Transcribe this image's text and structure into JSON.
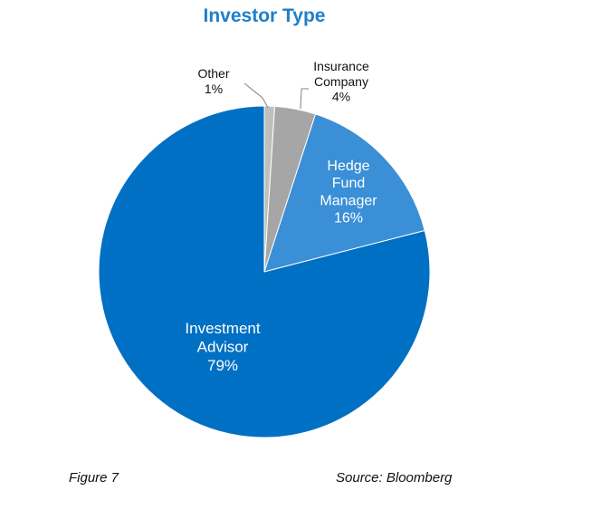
{
  "chart_data": {
    "type": "pie",
    "title": "Investor Type",
    "slices": [
      {
        "label": [
          "Other",
          "1%"
        ],
        "value": 1,
        "color": "#bfbfbf"
      },
      {
        "label": [
          "Insurance",
          "Company",
          "4%"
        ],
        "value": 4,
        "color": "#a6a6a6"
      },
      {
        "label": [
          "Hedge",
          "Fund",
          "Manager",
          "16%"
        ],
        "value": 16,
        "color": "#3a8fd6"
      },
      {
        "label": [
          "Investment",
          "Advisor",
          "79%"
        ],
        "value": 79,
        "color": "#0070c4"
      }
    ]
  },
  "footer": {
    "figure": "Figure 7",
    "source": "Source: Bloomberg"
  }
}
